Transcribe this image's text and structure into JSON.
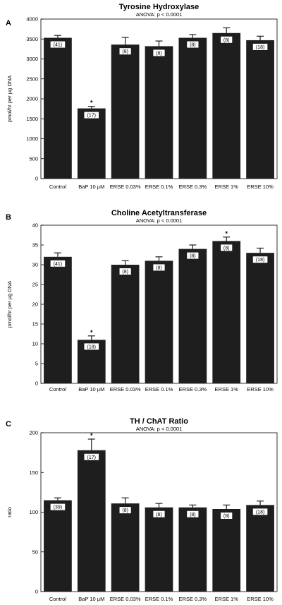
{
  "chart_data": [
    {
      "panel": "A",
      "type": "bar",
      "title": "Tyrosine Hydroxylase",
      "subtitle": "ANOVA: p < 0.0001",
      "ylabel": "pmol/hr per µg DNA",
      "ylim": [
        0,
        4000
      ],
      "yticks": [
        0,
        500,
        1000,
        1500,
        2000,
        2500,
        3000,
        3500,
        4000
      ],
      "categories": [
        "Control",
        "BaP 10 µM",
        "ERSE 0.03%",
        "ERSE 0.1%",
        "ERSE 0.3%",
        "ERSE 1%",
        "ERSE 10%"
      ],
      "values": [
        3530,
        1760,
        3360,
        3320,
        3530,
        3650,
        3470
      ],
      "errors": [
        60,
        50,
        180,
        130,
        80,
        130,
        100
      ],
      "n_labels": [
        "(41)",
        "(17)",
        "(8)",
        "(8)",
        "(8)",
        "(8)",
        "(18)"
      ],
      "significant": [
        false,
        true,
        false,
        false,
        false,
        false,
        false
      ]
    },
    {
      "panel": "B",
      "type": "bar",
      "title": "Choline Acetyltransferase",
      "subtitle": "ANOVA: p < 0.0001",
      "ylabel": "pmol/hr per µg DNA",
      "ylim": [
        0,
        40
      ],
      "yticks": [
        0,
        5,
        10,
        15,
        20,
        25,
        30,
        35,
        40
      ],
      "categories": [
        "Control",
        "BaP 10 µM",
        "ERSE 0.03%",
        "ERSE 0.1%",
        "ERSE 0.3%",
        "ERSE 1%",
        "ERSE 10%"
      ],
      "values": [
        32,
        11,
        30,
        31,
        34,
        36,
        33
      ],
      "errors": [
        1.0,
        1.0,
        1.0,
        1.0,
        1.0,
        1.0,
        1.2
      ],
      "n_labels": [
        "(41)",
        "(18)",
        "(8)",
        "(8)",
        "(8)",
        "(8)",
        "(18)"
      ],
      "significant": [
        false,
        true,
        false,
        false,
        false,
        true,
        false
      ]
    },
    {
      "panel": "C",
      "type": "bar",
      "title": "TH / ChAT Ratio",
      "subtitle": "ANOVA: p < 0.0001",
      "ylabel": "ratio",
      "ylim": [
        0,
        200
      ],
      "yticks": [
        0,
        50,
        100,
        150,
        200
      ],
      "categories": [
        "Control",
        "BaP 10 µM",
        "ERSE 0.03%",
        "ERSE 0.1%",
        "ERSE 0.3%",
        "ERSE 1%",
        "ERSE 10%"
      ],
      "values": [
        115,
        178,
        111,
        106,
        106,
        104,
        109
      ],
      "errors": [
        3,
        14,
        7,
        5,
        3,
        5,
        5
      ],
      "n_labels": [
        "(39)",
        "(17)",
        "(8)",
        "(8)",
        "(8)",
        "(8)",
        "(18)"
      ],
      "significant": [
        false,
        true,
        false,
        false,
        false,
        false,
        false
      ]
    }
  ],
  "colors": {
    "bar": "#1e1e1e",
    "label_box": "#ffffff"
  }
}
